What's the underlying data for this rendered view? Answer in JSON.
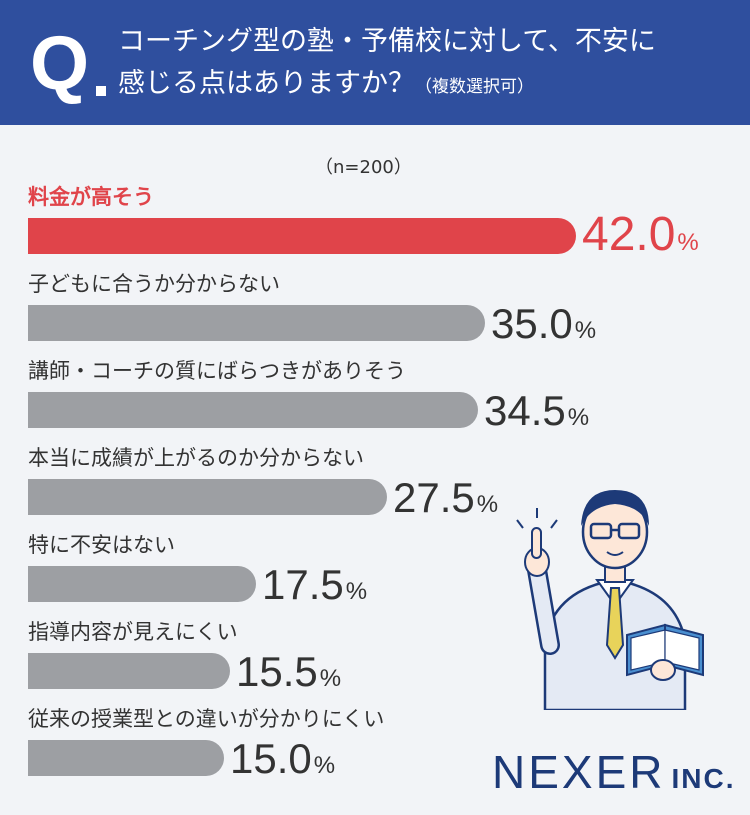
{
  "question": {
    "mark": "Q",
    "line1": "コーチング型の塾・予備校に対して、不安に",
    "line2": "感じる点はありますか？",
    "note": "（複数選択可）"
  },
  "sample_size": "（n=200）",
  "logo": {
    "name": "NEXER",
    "suffix": "INC."
  },
  "illustration": "teacher-pointing-with-book",
  "colors": {
    "header": "#2f4f9e",
    "highlight": "#e0444a",
    "bar": "#9d9fa3",
    "logo": "#1d3a78"
  },
  "chart_data": {
    "type": "bar",
    "orientation": "horizontal",
    "unit": "%",
    "title": "コーチング型の塾・予備校に対して、不安に感じる点はありますか？（複数選択可）",
    "categories": [
      "料金が高そう",
      "子どもに合うか分からない",
      "講師・コーチの質にばらつきがありそう",
      "本当に成績が上がるのか分からない",
      "特に不安はない",
      "指導内容が見えにくい",
      "従来の授業型との違いが分かりにくい"
    ],
    "values": [
      42.0,
      35.0,
      34.5,
      27.5,
      17.5,
      15.5,
      15.0
    ],
    "labels": [
      "42.0",
      "35.0",
      "34.5",
      "27.5",
      "17.5",
      "15.5",
      "15.0"
    ],
    "highlight_index": 0
  }
}
